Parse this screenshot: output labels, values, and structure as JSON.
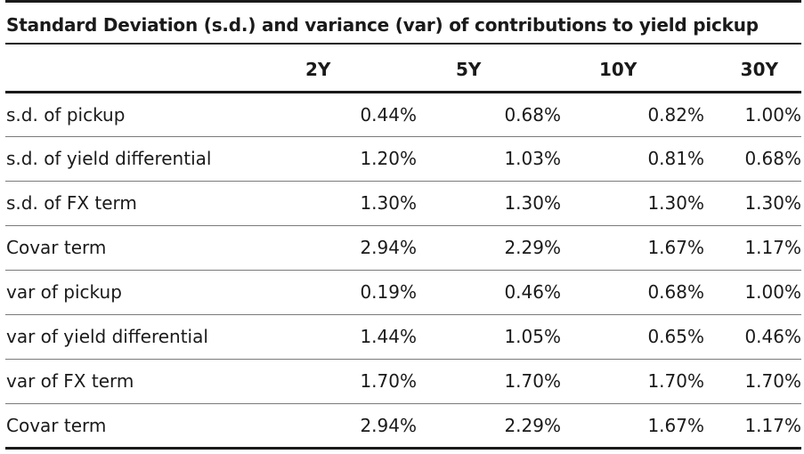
{
  "title": "Standard Deviation (s.d.) and variance (var) of contributions to yield pickup",
  "columns": [
    "",
    "2Y",
    "5Y",
    "10Y",
    "30Y"
  ],
  "rows": [
    {
      "label": "s.d. of pickup",
      "values": [
        "0.44%",
        "0.68%",
        "0.82%",
        "1.00%"
      ]
    },
    {
      "label": "s.d. of yield differential",
      "values": [
        "1.20%",
        "1.03%",
        "0.81%",
        "0.68%"
      ]
    },
    {
      "label": "s.d. of FX term",
      "values": [
        "1.30%",
        "1.30%",
        "1.30%",
        "1.30%"
      ]
    },
    {
      "label": "Covar term",
      "values": [
        "2.94%",
        "2.29%",
        "1.67%",
        "1.17%"
      ]
    },
    {
      "label": "var of pickup",
      "values": [
        "0.19%",
        "0.46%",
        "0.68%",
        "1.00%"
      ]
    },
    {
      "label": "var of yield differential",
      "values": [
        "1.44%",
        "1.05%",
        "0.65%",
        "0.46%"
      ]
    },
    {
      "label": "var of FX term",
      "values": [
        "1.70%",
        "1.70%",
        "1.70%",
        "1.70%"
      ]
    },
    {
      "label": "Covar term",
      "values": [
        "2.94%",
        "2.29%",
        "1.67%",
        "1.17%"
      ]
    }
  ]
}
